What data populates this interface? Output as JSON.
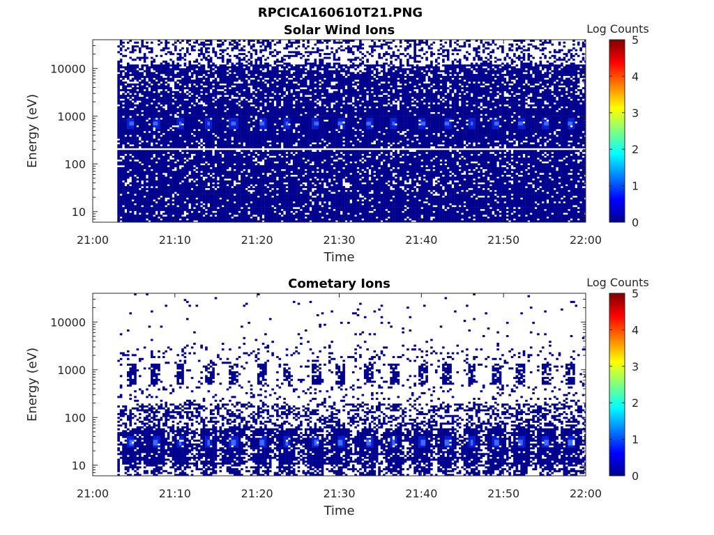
{
  "figure": {
    "title": "RPCICA160610T21.PNG"
  },
  "colors": {
    "spectrogram_base": "#00008f",
    "spectrogram_peak": "#1a4cff",
    "axes": "#262626",
    "background": "#ffffff"
  },
  "chart_data": [
    {
      "type": "heatmap",
      "title": "Solar Wind Ions",
      "xlabel": "Time",
      "ylabel": "Energy (eV)",
      "y_scale": "log",
      "ylim": [
        6,
        40000
      ],
      "xlim": [
        "21:00",
        "22:00"
      ],
      "x_ticks": [
        "21:00",
        "21:10",
        "21:20",
        "21:30",
        "21:40",
        "21:50",
        "22:00"
      ],
      "y_ticks": [
        "10",
        "100",
        "1000",
        "10000"
      ],
      "y_tick_values": [
        10,
        100,
        1000,
        10000
      ],
      "data_start": "21:03",
      "data_end": "22:00",
      "band_low_eV": 6,
      "band_high_eV": 40000,
      "sparse_above_eV": 12000,
      "gap_eV": 200,
      "peak_energy_eV": 700,
      "peak_level": 1.0,
      "peak_times": [
        "21:04.5",
        "21:07.5",
        "21:10.5",
        "21:14",
        "21:17",
        "21:20.5",
        "21:23.5",
        "21:27",
        "21:30",
        "21:33.5",
        "21:36.5",
        "21:40",
        "21:43",
        "21:46",
        "21:49",
        "21:52",
        "21:55",
        "21:58"
      ],
      "colorbar": {
        "label": "Log Counts",
        "range": [
          0,
          5
        ],
        "ticks": [
          "0",
          "1",
          "2",
          "3",
          "4",
          "5"
        ]
      }
    },
    {
      "type": "heatmap",
      "title": "Cometary Ions",
      "xlabel": "Time",
      "ylabel": "Energy (eV)",
      "y_scale": "log",
      "ylim": [
        6,
        40000
      ],
      "xlim": [
        "21:00",
        "22:00"
      ],
      "x_ticks": [
        "21:00",
        "21:10",
        "21:20",
        "21:30",
        "21:40",
        "21:50",
        "22:00"
      ],
      "y_ticks": [
        "10",
        "100",
        "1000",
        "10000"
      ],
      "y_tick_values": [
        10,
        100,
        1000,
        10000
      ],
      "data_start": "21:03",
      "data_end": "22:00",
      "band_low_eV": 6,
      "band_high_eV": 200,
      "sparse_above_eV": 200,
      "upper_blobs_eV": 800,
      "peak_energy_eV": 30,
      "peak_level": 1.0,
      "peak_times": [
        "21:04.5",
        "21:07.5",
        "21:10.5",
        "21:14",
        "21:17",
        "21:20.5",
        "21:23.5",
        "21:27",
        "21:30",
        "21:33.5",
        "21:36.5",
        "21:40",
        "21:43",
        "21:46",
        "21:49",
        "21:52",
        "21:55",
        "21:58"
      ],
      "colorbar": {
        "label": "Log Counts",
        "range": [
          0,
          5
        ],
        "ticks": [
          "0",
          "1",
          "2",
          "3",
          "4",
          "5"
        ]
      }
    }
  ]
}
